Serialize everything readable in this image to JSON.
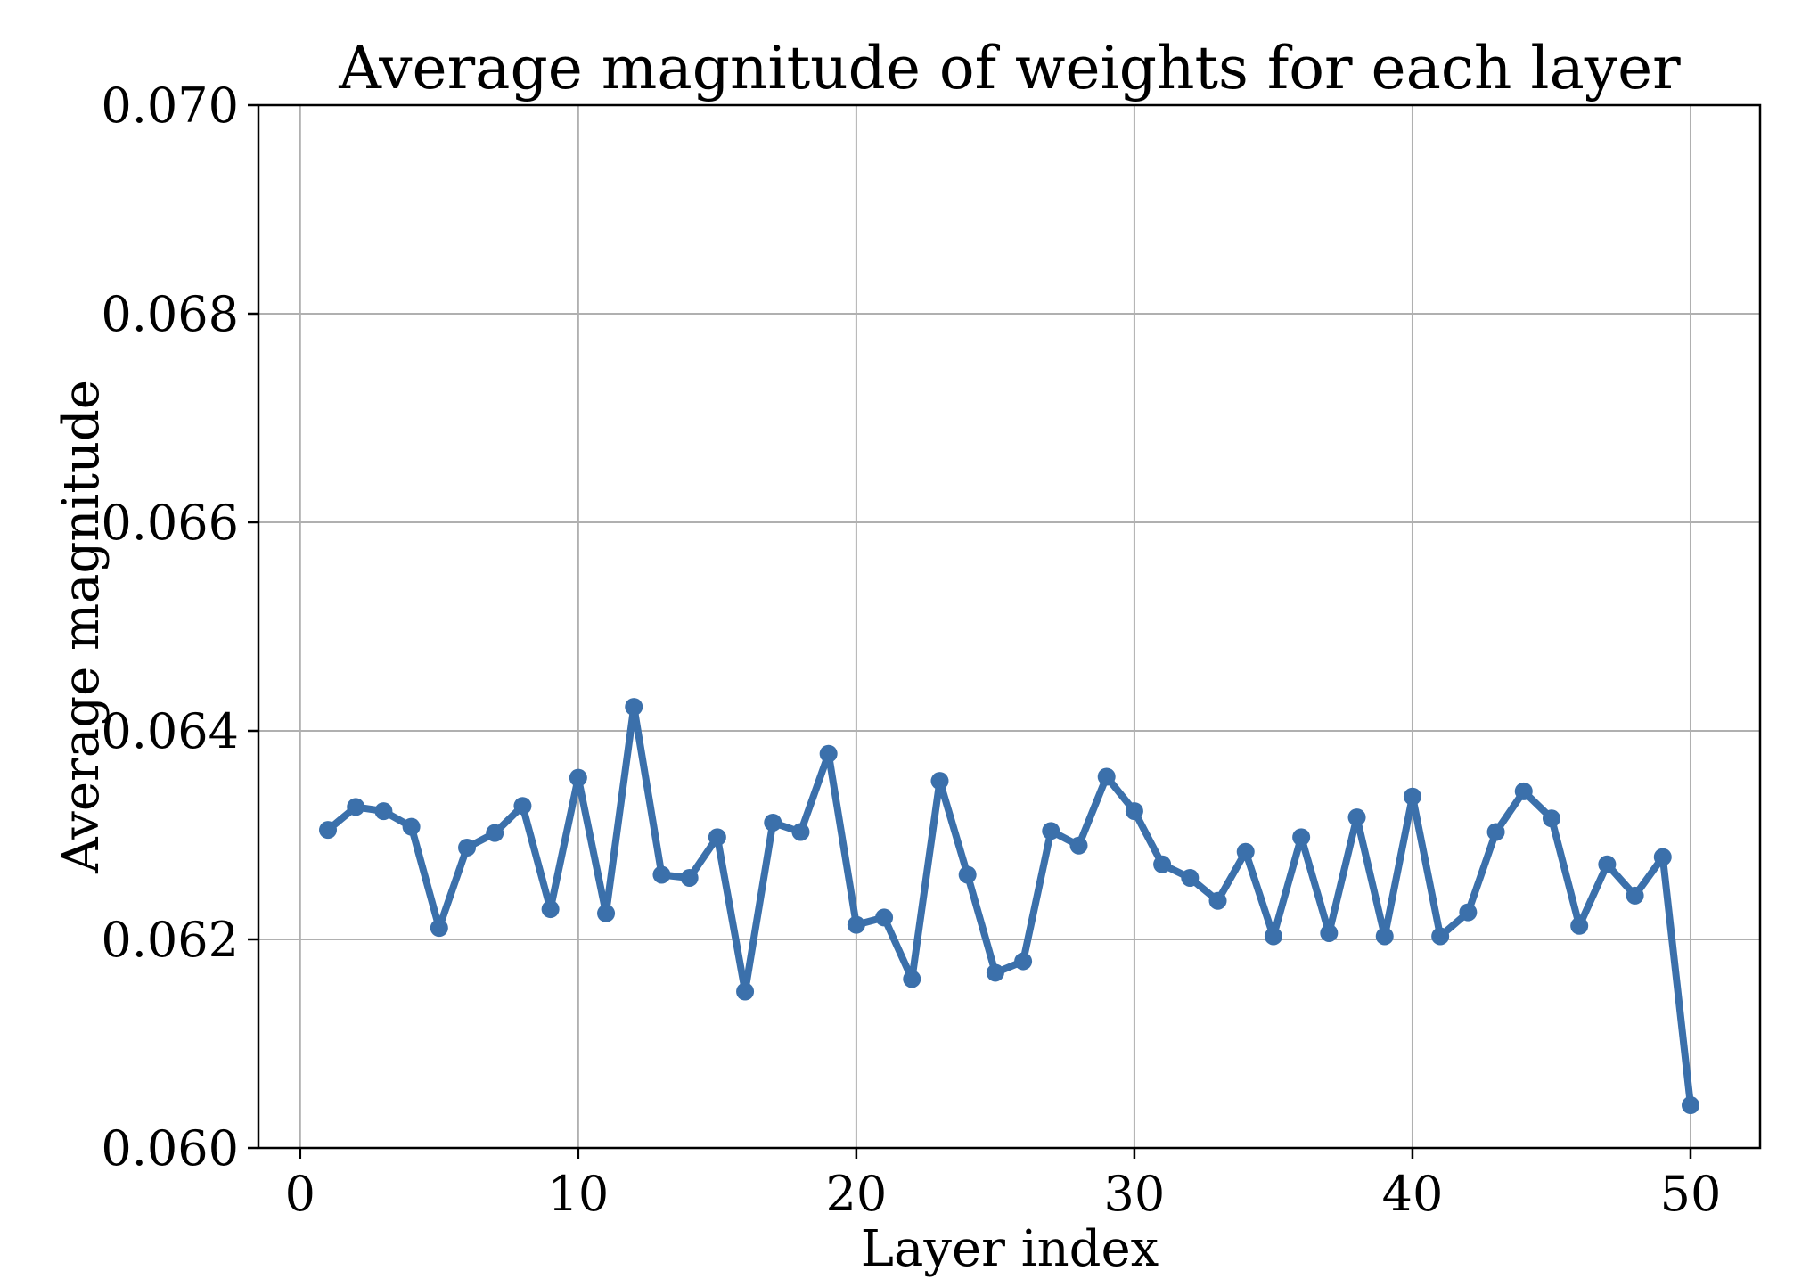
{
  "chart_data": {
    "type": "line",
    "title": "Average magnitude of weights for each layer",
    "xlabel": "Layer index",
    "ylabel": "Average magnitude",
    "xlim": [
      -1.5,
      52.5
    ],
    "ylim": [
      0.06,
      0.07
    ],
    "xticks": [
      0,
      10,
      20,
      30,
      40,
      50
    ],
    "xtick_labels": [
      "0",
      "10",
      "20",
      "30",
      "40",
      "50"
    ],
    "yticks": [
      0.06,
      0.062,
      0.064,
      0.066,
      0.068,
      0.07
    ],
    "ytick_labels": [
      "0.060",
      "0.062",
      "0.064",
      "0.066",
      "0.068",
      "0.070"
    ],
    "grid": true,
    "color": "#3b70ab",
    "series": [
      {
        "x": [
          1,
          2,
          3,
          4,
          5,
          6,
          7,
          8,
          9,
          10,
          11,
          12,
          13,
          14,
          15,
          16,
          17,
          18,
          19,
          20,
          21,
          22,
          23,
          24,
          25,
          26,
          27,
          28,
          29,
          30,
          31,
          32,
          33,
          34,
          35,
          36,
          37,
          38,
          39,
          40,
          41,
          42,
          43,
          44,
          45,
          46,
          47,
          48,
          49,
          50
        ],
        "values": [
          0.06305,
          0.06327,
          0.06323,
          0.06308,
          0.06211,
          0.06288,
          0.06302,
          0.06328,
          0.06229,
          0.06355,
          0.06225,
          0.06423,
          0.06262,
          0.06259,
          0.06298,
          0.0615,
          0.06312,
          0.06303,
          0.06378,
          0.06214,
          0.06221,
          0.06162,
          0.06352,
          0.06262,
          0.06168,
          0.06179,
          0.06304,
          0.0629,
          0.06356,
          0.06323,
          0.06272,
          0.06259,
          0.06237,
          0.06284,
          0.06203,
          0.06298,
          0.06206,
          0.06317,
          0.06203,
          0.06337,
          0.06203,
          0.06226,
          0.06303,
          0.06342,
          0.06316,
          0.06213,
          0.06272,
          0.06242,
          0.06279,
          0.06041
        ]
      }
    ]
  }
}
